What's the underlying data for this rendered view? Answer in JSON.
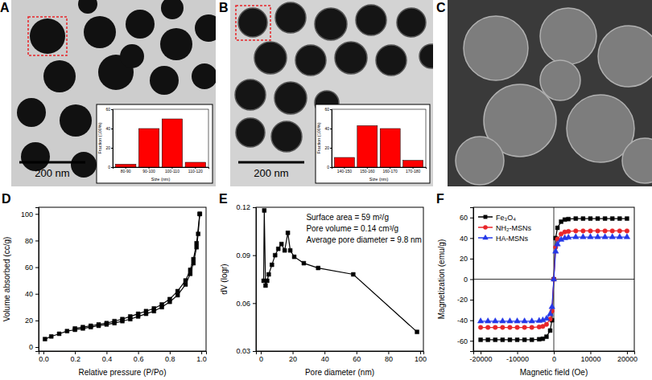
{
  "chart_data": [
    {
      "type": "image",
      "title": "A",
      "annotations": [
        "200 nm"
      ]
    },
    {
      "type": "bar",
      "x_label": "Size (nm)",
      "y_label": "Fraction (100%)",
      "categories": [
        "80-90",
        "90-100",
        "100-110",
        "110-120"
      ],
      "values": [
        3,
        40,
        50,
        5
      ],
      "color": "#ff0000",
      "ylim": [
        0,
        60
      ],
      "yticks": [
        0,
        20,
        40,
        60
      ]
    },
    {
      "type": "image",
      "title": "B",
      "annotations": [
        "200 nm"
      ]
    },
    {
      "type": "bar",
      "x_label": "Size (nm)",
      "y_label": "Fraction (100%)",
      "categories": [
        "140-150",
        "150-160",
        "160-170",
        "170-180"
      ],
      "values": [
        10,
        43,
        40,
        7
      ],
      "color": "#ff0000",
      "ylim": [
        0,
        60
      ],
      "yticks": [
        0,
        20,
        40,
        60
      ]
    },
    {
      "type": "image",
      "title": "C"
    },
    {
      "type": "line",
      "title": "D",
      "x_label": "Relative pressure (P/Po)",
      "y_label": "Volume absorbed (cc/g)",
      "xlim": [
        -0.03,
        1.03
      ],
      "xticks": [
        {
          "value": 0,
          "label": "0.0"
        },
        0.2,
        0.4,
        0.6,
        0.8,
        {
          "value": 1,
          "label": "1.0"
        }
      ],
      "ylim": [
        -3,
        105
      ],
      "yticks": [
        0,
        20,
        40,
        60,
        80,
        100
      ],
      "series": [
        {
          "color": "#000000",
          "marker": "square",
          "x": [
            0.01,
            0.05,
            0.1,
            0.15,
            0.2,
            0.25,
            0.3,
            0.35,
            0.4,
            0.45,
            0.5,
            0.55,
            0.6,
            0.65,
            0.7,
            0.75,
            0.8,
            0.85,
            0.9,
            0.93,
            0.95,
            0.97,
            0.98,
            0.99
          ],
          "values": [
            6,
            8,
            10,
            12,
            13,
            14,
            15,
            16,
            17,
            18,
            19.5,
            21,
            23,
            25,
            27,
            30,
            34,
            39,
            47,
            55,
            63,
            75,
            85,
            100
          ]
        },
        {
          "color": "#000000",
          "marker": "square",
          "x": [
            0.99,
            0.97,
            0.95,
            0.93,
            0.9,
            0.85,
            0.8,
            0.75,
            0.7,
            0.65,
            0.6,
            0.55,
            0.5,
            0.45,
            0.4,
            0.35,
            0.3,
            0.25,
            0.2
          ],
          "values": [
            100,
            78,
            66,
            58,
            50,
            42,
            36,
            32,
            29,
            27,
            25,
            23,
            21,
            19.5,
            18,
            17,
            16,
            15,
            14
          ]
        }
      ]
    },
    {
      "type": "line",
      "title": "E",
      "x_label": "Pore diameter (nm)",
      "y_label": "dV (logr)",
      "annotations": [
        "Surface area = 59 m²/g",
        "Pore volume = 0.14 cm³/g",
        "Average pore diameter = 9.8 nm"
      ],
      "xlim": [
        -3,
        102
      ],
      "xticks": [
        0,
        20,
        40,
        60,
        80,
        100
      ],
      "ylim": [
        0.03,
        0.12
      ],
      "yticks": [
        0.03,
        0.06,
        0.09,
        0.12
      ],
      "color": "#000000",
      "marker": "square",
      "x": [
        1.8,
        2.2,
        3,
        4,
        5,
        7,
        9,
        11,
        13,
        15,
        17,
        18.5,
        21,
        27,
        36,
        58,
        98
      ],
      "values": [
        0.074,
        0.118,
        0.071,
        0.074,
        0.078,
        0.084,
        0.09,
        0.094,
        0.097,
        0.093,
        0.104,
        0.093,
        0.089,
        0.085,
        0.082,
        0.078,
        0.042
      ]
    },
    {
      "type": "line",
      "title": "F",
      "x_label": "Magnetic field (Oe)",
      "y_label": "Magnetization (emu/g)",
      "xlim": [
        -22000,
        22000
      ],
      "xticks": [
        -20000,
        -10000,
        0,
        10000,
        20000
      ],
      "ylim": [
        -70,
        70
      ],
      "yticks": [
        -60,
        -40,
        -20,
        0,
        20,
        40,
        60
      ],
      "legend": "upper left",
      "x": [
        -20000,
        -18000,
        -16000,
        -14000,
        -12000,
        -10000,
        -8000,
        -6000,
        -4000,
        -3000,
        -2000,
        -1000,
        -500,
        0,
        500,
        1000,
        2000,
        3000,
        4000,
        6000,
        8000,
        10000,
        12000,
        14000,
        16000,
        18000,
        20000
      ],
      "series": [
        {
          "name": "Fe₃O₄",
          "color": "#000000",
          "marker": "square",
          "values": [
            -59,
            -59,
            -59,
            -59,
            -59,
            -59,
            -59,
            -59,
            -58.5,
            -58,
            -56,
            -50,
            -40,
            0,
            40,
            50,
            56,
            58,
            58.5,
            59,
            59,
            59,
            59,
            59,
            59,
            59,
            59
          ]
        },
        {
          "name": "NH₂-MSNs",
          "color": "#e8262a",
          "marker": "circle",
          "values": [
            -47,
            -47,
            -47,
            -47,
            -47,
            -47,
            -47,
            -47,
            -46.5,
            -46,
            -44,
            -39,
            -31,
            0,
            31,
            39,
            44,
            46,
            46.5,
            47,
            47,
            47,
            47,
            47,
            47,
            47,
            47
          ]
        },
        {
          "name": "HA-MSNs",
          "color": "#2438e8",
          "marker": "triangle",
          "values": [
            -41,
            -41,
            -41,
            -41,
            -41,
            -41,
            -41,
            -41,
            -40.5,
            -40,
            -38.5,
            -34,
            -27,
            0,
            27,
            34,
            38.5,
            40,
            40.5,
            41,
            41,
            41,
            41,
            41,
            41,
            41,
            41
          ]
        }
      ]
    }
  ]
}
